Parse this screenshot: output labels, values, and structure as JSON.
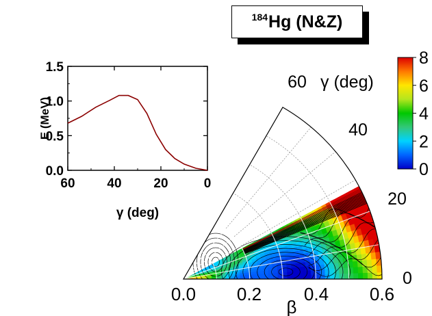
{
  "title": {
    "mass": "184",
    "text": "Hg (N&Z)"
  },
  "chart_data": [
    {
      "type": "line",
      "id": "inset-energy-vs-gamma",
      "xlabel": "γ (deg)",
      "ylabel": "E (MeV)",
      "xlim": [
        60,
        0
      ],
      "ylim": [
        0.0,
        1.5
      ],
      "x_ticks": [
        "60",
        "40",
        "20",
        "0"
      ],
      "y_ticks": [
        "0.0",
        "0.5",
        "1.0",
        "1.5"
      ],
      "series": [
        {
          "color": "#8b0000",
          "x": [
            60,
            54,
            48,
            42,
            38,
            34,
            30,
            26,
            22,
            18,
            14,
            10,
            5,
            0
          ],
          "y": [
            0.68,
            0.78,
            0.91,
            1.01,
            1.08,
            1.08,
            1.02,
            0.82,
            0.52,
            0.3,
            0.17,
            0.09,
            0.03,
            0.0
          ]
        }
      ]
    },
    {
      "type": "heatmap",
      "id": "potential-energy-surface",
      "description_kind": "polar beta-gamma sector plot",
      "xlabel": "β",
      "angular_label": "γ (deg)",
      "beta_ticks": [
        "0.0",
        "0.2",
        "0.4",
        "0.6"
      ],
      "beta_range": [
        0.0,
        0.6
      ],
      "gamma_range": [
        0,
        60
      ],
      "gamma_ticks": [
        "0",
        "20",
        "40",
        "60"
      ],
      "colorbar": {
        "range": [
          0,
          8
        ],
        "ticks": [
          "0",
          "2",
          "4",
          "6",
          "8"
        ],
        "colors": [
          "#0000c8",
          "#0064ff",
          "#00d2ff",
          "#32c878",
          "#00c800",
          "#b4e61e",
          "#ffe600",
          "#ff7800",
          "#dc0000"
        ]
      },
      "cutoff_energy_above_gamma_deg": 27,
      "minima": [
        {
          "beta": 0.31,
          "gamma": 4,
          "energy": 0.0
        },
        {
          "beta": 0.11,
          "gamma": 28,
          "energy": 0.7
        }
      ]
    }
  ]
}
